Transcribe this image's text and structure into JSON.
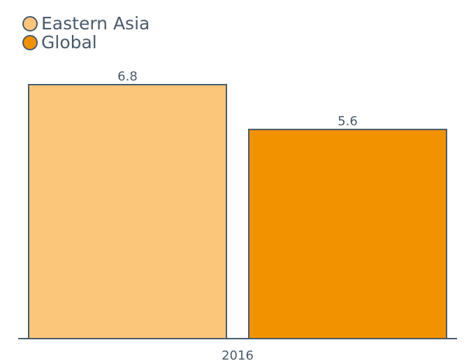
{
  "chart_data": {
    "type": "bar",
    "categories": [
      "2016"
    ],
    "series": [
      {
        "name": "Eastern Asia",
        "color": "#fbc67a",
        "values": [
          6.8
        ]
      },
      {
        "name": "Global",
        "color": "#f39200",
        "values": [
          5.6
        ]
      }
    ]
  }
}
